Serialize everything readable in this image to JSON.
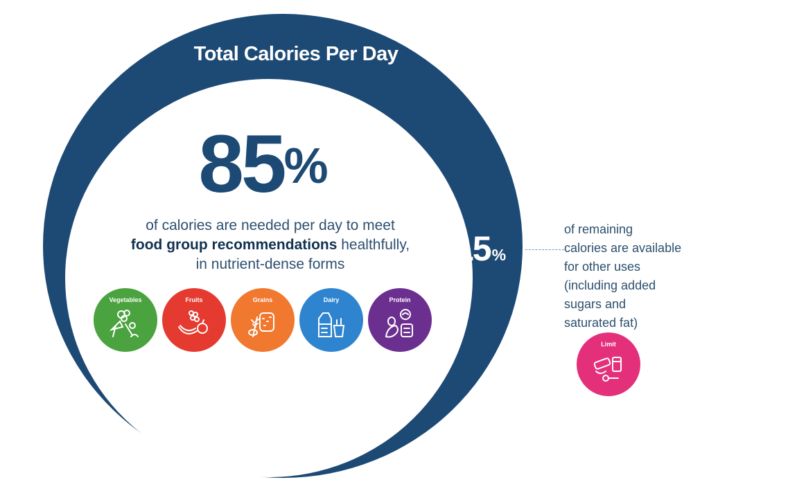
{
  "title": "Total Calories Per Day",
  "main": {
    "value": "85",
    "unit": "%",
    "line1": "of calories are needed per day to meet",
    "line2_bold": "food group recommendations",
    "line2_rest": " healthfully,",
    "line3": "in nutrient-dense forms"
  },
  "remaining": {
    "value": "15",
    "unit": "%",
    "lines": [
      "of remaining",
      "calories are available",
      "for other uses",
      "(including added",
      "sugars and",
      "saturated fat)"
    ]
  },
  "food_groups": [
    {
      "label": "Vegetables",
      "color": "#4aa33e",
      "icon": "vegetables-icon"
    },
    {
      "label": "Fruits",
      "color": "#e53a2f",
      "icon": "fruits-icon"
    },
    {
      "label": "Grains",
      "color": "#f0782f",
      "icon": "grains-icon"
    },
    {
      "label": "Dairy",
      "color": "#2f84cf",
      "icon": "dairy-icon"
    },
    {
      "label": "Protein",
      "color": "#6b2f8f",
      "icon": "protein-icon"
    }
  ],
  "limit": {
    "label": "Limit",
    "color": "#e4307a",
    "icon": "limit-icon"
  },
  "colors": {
    "navy": "#1d4a74",
    "text": "#2c4f6e"
  }
}
